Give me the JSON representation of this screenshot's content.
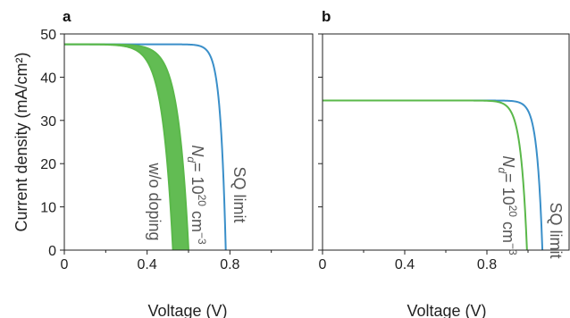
{
  "chart_data": [
    {
      "type": "line",
      "panel": "a",
      "xlabel": "Voltage (V)",
      "ylabel": "Current density (mA/cm²)",
      "xlim": [
        0,
        1.2
      ],
      "ylim": [
        0,
        50
      ],
      "x_ticks": [
        0,
        0.4,
        0.8
      ],
      "x_tick_labels": [
        "0",
        "0.4",
        "0.8"
      ],
      "y_ticks": [
        0,
        10,
        20,
        30,
        40,
        50
      ],
      "y_tick_labels": [
        "0",
        "10",
        "20",
        "30",
        "40",
        "50"
      ],
      "series": [
        {
          "name": "SQ limit",
          "color": "#3a8fc9",
          "jsc": 47.6,
          "voc": 0.78,
          "n": 0.026
        },
        {
          "name": "w/o doping",
          "color": "#5ab84a",
          "jsc": 47.6,
          "voc": 0.525,
          "n": 0.05
        },
        {
          "name": "Nd = 10^20 cm^-3",
          "color": "#5ab84a",
          "jsc": 47.6,
          "voc": 0.6,
          "n": 0.05
        }
      ],
      "band_fill": "#5ab84a",
      "annotations": {
        "sq": "SQ limit",
        "nd_base": "N",
        "nd_sub": "d",
        "nd_mid": "= 10",
        "nd_exp": "20",
        "nd_unit": " cm",
        "nd_unit_exp": "−3",
        "wo": "w/o doping"
      }
    },
    {
      "type": "line",
      "panel": "b",
      "xlabel": "Voltage (V)",
      "ylabel": "",
      "xlim": [
        0,
        1.2
      ],
      "ylim": [
        0,
        50
      ],
      "x_ticks": [
        0,
        0.4,
        0.8
      ],
      "x_tick_labels": [
        "0",
        "0.4",
        "0.8"
      ],
      "y_ticks": [
        0,
        10,
        20,
        30,
        40,
        50
      ],
      "series": [
        {
          "name": "SQ limit",
          "color": "#3a8fc9",
          "jsc": 34.6,
          "voc": 1.07,
          "n": 0.026
        },
        {
          "name": "Nd = 10^20 cm^-3",
          "color": "#5ab84a",
          "jsc": 34.6,
          "voc": 0.995,
          "n": 0.03
        }
      ],
      "annotations": {
        "sq": "SQ limit",
        "nd_base": "N",
        "nd_sub": "d",
        "nd_mid": "= 10",
        "nd_exp": "20",
        "nd_unit": " cm",
        "nd_unit_exp": "−3"
      }
    }
  ]
}
